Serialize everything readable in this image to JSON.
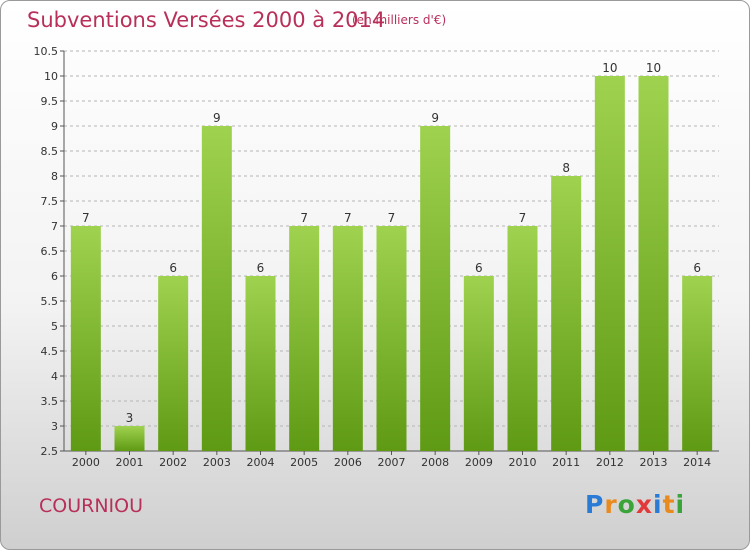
{
  "header": {
    "title": "Subventions Versées 2000 à 2014",
    "subtitle": "(en milliers d'€)"
  },
  "footer": {
    "commune": "COURNIOU",
    "brand_letters": [
      {
        "ch": "P",
        "color": "#2a7bd6"
      },
      {
        "ch": "r",
        "color": "#e98a1f"
      },
      {
        "ch": "o",
        "color": "#3aa33a"
      },
      {
        "ch": "x",
        "color": "#e23a3a"
      },
      {
        "ch": "i",
        "color": "#2a7bd6"
      },
      {
        "ch": "t",
        "color": "#e98a1f"
      },
      {
        "ch": "i",
        "color": "#3aa33a"
      }
    ]
  },
  "colors": {
    "bar_top": "#9fd24f",
    "bar_bottom": "#5f9a14",
    "grid": "#b5b5b5",
    "axis_text": "#333333",
    "title": "#b8305a"
  },
  "chart_data": {
    "type": "bar",
    "categories": [
      "2000",
      "2001",
      "2002",
      "2003",
      "2004",
      "2005",
      "2006",
      "2007",
      "2008",
      "2009",
      "2010",
      "2011",
      "2012",
      "2013",
      "2014"
    ],
    "values": [
      7,
      3,
      6,
      9,
      6,
      7,
      7,
      7,
      9,
      6,
      7,
      8,
      10,
      10,
      6
    ],
    "value_labels": [
      "7",
      "3",
      "6",
      "9",
      "6",
      "7",
      "7",
      "7",
      "9",
      "6",
      "7",
      "8",
      "10",
      "10",
      "6"
    ],
    "ylim": [
      2.5,
      10.5
    ],
    "yticks": [
      2.5,
      3,
      3.5,
      4,
      4.5,
      5,
      5.5,
      6,
      6.5,
      7,
      7.5,
      8,
      8.5,
      9,
      9.5,
      10,
      10.5
    ],
    "ytick_labels": [
      "2.5",
      "3",
      "3.5",
      "4",
      "4.5",
      "5",
      "5.5",
      "6",
      "6.5",
      "7",
      "7.5",
      "8",
      "8.5",
      "9",
      "9.5",
      "10",
      "10.5"
    ],
    "grid": true,
    "legend": "none"
  }
}
